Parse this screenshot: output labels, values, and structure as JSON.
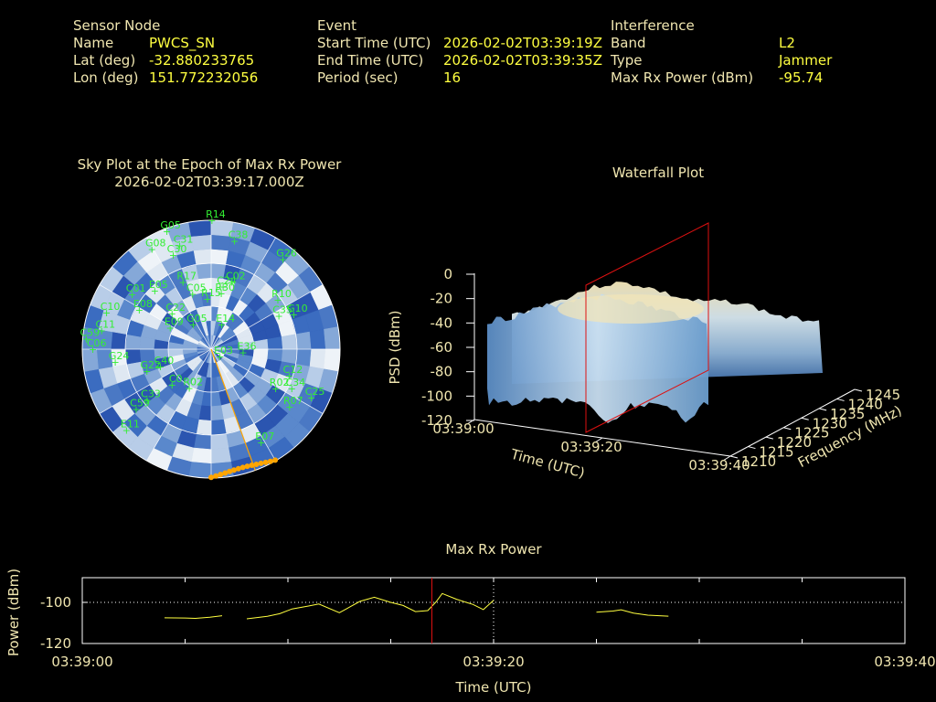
{
  "info": {
    "sensor": {
      "heading": "Sensor Node",
      "rows": [
        {
          "label": "Name",
          "value": "PWCS_SN"
        },
        {
          "label": "Lat (deg)",
          "value": "-32.880233765"
        },
        {
          "label": "Lon (deg)",
          "value": "151.772232056"
        }
      ]
    },
    "event": {
      "heading": "Event",
      "rows": [
        {
          "label": "Start Time (UTC)",
          "value": "2026-02-02T03:39:19Z"
        },
        {
          "label": "End Time (UTC)",
          "value": "2026-02-02T03:39:35Z"
        },
        {
          "label": "Period (sec)",
          "value": "16"
        }
      ]
    },
    "interference": {
      "heading": "Interference",
      "rows": [
        {
          "label": "Band",
          "value": "L2"
        },
        {
          "label": "Type",
          "value": "Jammer"
        },
        {
          "label": "Max Rx Power (dBm)",
          "value": "-95.74"
        }
      ]
    }
  },
  "colors": {
    "label": "#f0e6b0",
    "value": "#ffff40",
    "satellite": "#33ee33",
    "track": "#ffa500",
    "cursor": "#dd1111",
    "power_line": "#ffff40",
    "axis": "#ffffff"
  },
  "chart_data": [
    {
      "type": "scatter",
      "subtype": "polar-sky-plot",
      "title": "Sky Plot at the Epoch of Max Rx Power",
      "subtitle": "2026-02-02T03:39:17.000Z",
      "elevation_rings_deg": [
        0,
        30,
        60
      ],
      "grid": true,
      "satellites": [
        {
          "id": "R14",
          "az": 2,
          "el": 0
        },
        {
          "id": "G05",
          "az": 341,
          "el": 3
        },
        {
          "id": "G08",
          "az": 331,
          "el": 10
        },
        {
          "id": "C31",
          "az": 345,
          "el": 15
        },
        {
          "id": "C30",
          "az": 340,
          "el": 20
        },
        {
          "id": "C38",
          "az": 14,
          "el": 12
        },
        {
          "id": "G26",
          "az": 40,
          "el": 8
        },
        {
          "id": "C01",
          "az": 306,
          "el": 25
        },
        {
          "id": "C10",
          "az": 290,
          "el": 15
        },
        {
          "id": "E08",
          "az": 300,
          "el": 35
        },
        {
          "id": "E05",
          "az": 318,
          "el": 35
        },
        {
          "id": "R17",
          "az": 340,
          "el": 40
        },
        {
          "id": "C02",
          "az": 20,
          "el": 40
        },
        {
          "id": "C24",
          "az": 14,
          "el": 45
        },
        {
          "id": "C05",
          "az": 345,
          "el": 50
        },
        {
          "id": "R15",
          "az": 0,
          "el": 55
        },
        {
          "id": "R30",
          "az": 14,
          "el": 50
        },
        {
          "id": "R10",
          "az": 55,
          "el": 30
        },
        {
          "id": "C35",
          "az": 65,
          "el": 35
        },
        {
          "id": "G10",
          "az": 68,
          "el": 25
        },
        {
          "id": "C06",
          "az": 270,
          "el": 10
        },
        {
          "id": "C11",
          "az": 280,
          "el": 15
        },
        {
          "id": "C59",
          "az": 275,
          "el": 5
        },
        {
          "id": "E14",
          "az": 30,
          "el": 70
        },
        {
          "id": "E09",
          "az": 300,
          "el": 60
        },
        {
          "id": "C22",
          "az": 315,
          "el": 55
        },
        {
          "id": "G05b",
          "az": 330,
          "el": 70
        },
        {
          "id": "E03",
          "az": 120,
          "el": 80
        },
        {
          "id": "E36",
          "az": 95,
          "el": 65
        },
        {
          "id": "G22",
          "az": 250,
          "el": 45
        },
        {
          "id": "E11",
          "az": 225,
          "el": 10
        },
        {
          "id": "G24",
          "az": 262,
          "el": 25
        },
        {
          "id": "C40",
          "az": 250,
          "el": 55
        },
        {
          "id": "C0",
          "az": 225,
          "el": 55
        },
        {
          "id": "C59b",
          "az": 230,
          "el": 25
        },
        {
          "id": "C33",
          "az": 230,
          "el": 35
        },
        {
          "id": "R02",
          "az": 205,
          "el": 60
        },
        {
          "id": "C34",
          "az": 115,
          "el": 25
        },
        {
          "id": "C12",
          "az": 108,
          "el": 30
        },
        {
          "id": "R07",
          "az": 125,
          "el": 20
        },
        {
          "id": "C25",
          "az": 115,
          "el": 10
        },
        {
          "id": "E07",
          "az": 150,
          "el": 15
        },
        {
          "id": "R02b",
          "az": 120,
          "el": 35
        }
      ],
      "track_az_range_deg": [
        150,
        180
      ]
    },
    {
      "type": "area",
      "subtype": "3d-waterfall",
      "title": "Waterfall Plot",
      "xlabel": "Time (UTC)",
      "ylabel": "Frequency (MHz)",
      "zlabel": "PSD (dBm)",
      "x_ticks": [
        "03:39:00",
        "03:39:20",
        "03:39:40"
      ],
      "y_ticks": [
        1210,
        1215,
        1220,
        1225,
        1230,
        1235,
        1240,
        1245
      ],
      "z_ticks": [
        0,
        -20,
        -40,
        -60,
        -80,
        -100,
        -120
      ],
      "zlim": [
        -120,
        0
      ],
      "ylim": [
        1210,
        1245
      ],
      "cursor_time": "03:39:17",
      "peak_psd_dbm": -15,
      "noise_floor_dbm": -85
    },
    {
      "type": "line",
      "title": "Max Rx Power",
      "xlabel": "Time (UTC)",
      "ylabel": "Power (dBm)",
      "x_ticks": [
        "03:39:00",
        "03:39:20",
        "03:39:40"
      ],
      "y_ticks": [
        -100,
        -120
      ],
      "xlim": [
        0,
        40
      ],
      "ylim": [
        -120,
        -88
      ],
      "cursor_time_sec": 17,
      "segments": [
        [
          [
            4.0,
            -107.5
          ],
          [
            5.0,
            -107.6
          ],
          [
            5.5,
            -107.8
          ],
          [
            6.2,
            -107.2
          ],
          [
            6.8,
            -106.5
          ]
        ],
        [
          [
            8.0,
            -108.0
          ],
          [
            9.0,
            -106.8
          ],
          [
            9.6,
            -105.5
          ],
          [
            10.2,
            -103.2
          ],
          [
            11.0,
            -101.8
          ],
          [
            11.5,
            -100.8
          ],
          [
            12.5,
            -105.0
          ],
          [
            13.5,
            -99.5
          ],
          [
            14.2,
            -97.5
          ],
          [
            15.0,
            -100.0
          ],
          [
            15.6,
            -101.5
          ],
          [
            16.2,
            -104.5
          ],
          [
            16.8,
            -104.0
          ],
          [
            17.2,
            -99.8
          ],
          [
            17.5,
            -95.7
          ],
          [
            18.2,
            -98.5
          ],
          [
            19.0,
            -101.0
          ],
          [
            19.5,
            -103.5
          ],
          [
            20.0,
            -99.0
          ]
        ],
        [
          [
            25.0,
            -104.8
          ],
          [
            25.8,
            -104.2
          ],
          [
            26.2,
            -103.6
          ],
          [
            26.8,
            -105.2
          ],
          [
            27.5,
            -106.2
          ],
          [
            28.5,
            -106.7
          ]
        ]
      ]
    }
  ]
}
